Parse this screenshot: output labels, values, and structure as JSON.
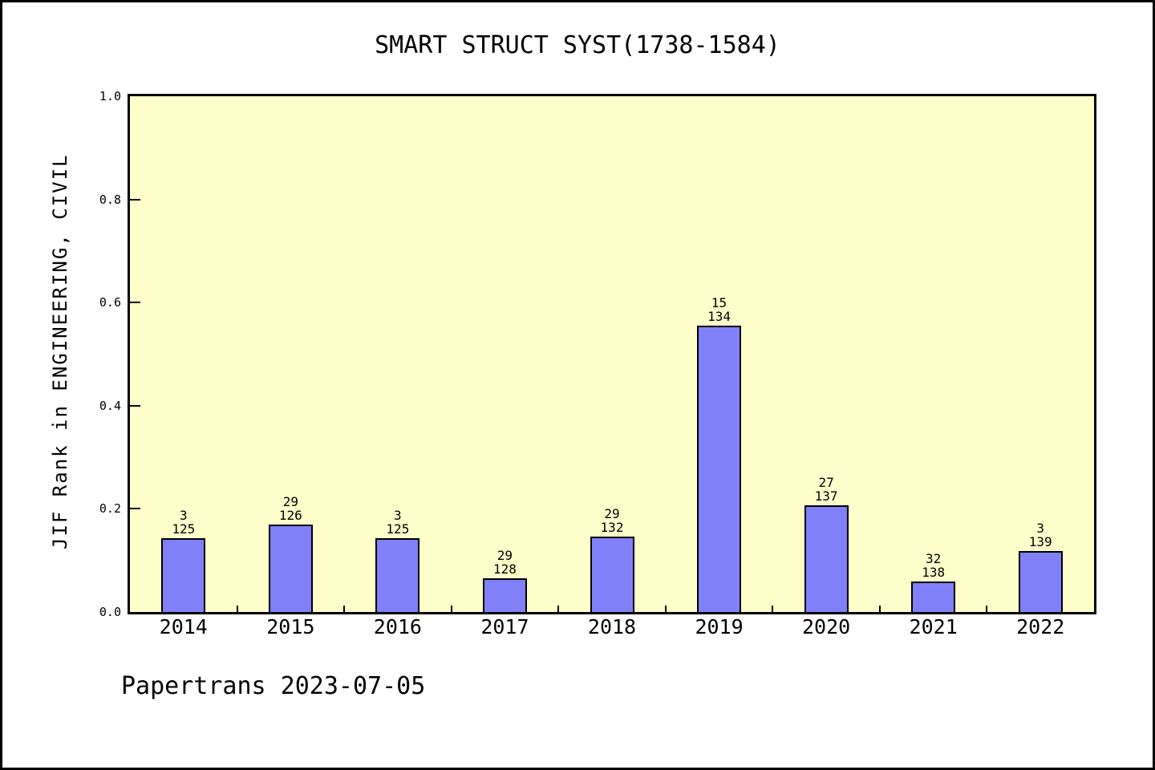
{
  "page": {
    "background": "#ffffff",
    "border_color": "#000000",
    "footer": "Papertrans 2023-07-05"
  },
  "chart_data": {
    "type": "bar",
    "title": "SMART STRUCT SYST(1738-1584)",
    "ylabel": "JIF Rank in ENGINEERING, CIVIL",
    "xlabel": "",
    "categories": [
      "2014",
      "2015",
      "2016",
      "2017",
      "2018",
      "2019",
      "2020",
      "2021",
      "2022"
    ],
    "values": [
      0.143,
      0.17,
      0.143,
      0.065,
      0.146,
      0.555,
      0.207,
      0.059,
      0.118
    ],
    "bar_labels": [
      {
        "line1": "3",
        "line2": "125"
      },
      {
        "line1": "29",
        "line2": "126"
      },
      {
        "line1": "3",
        "line2": "125"
      },
      {
        "line1": "29",
        "line2": "128"
      },
      {
        "line1": "29",
        "line2": "132"
      },
      {
        "line1": "15",
        "line2": "134"
      },
      {
        "line1": "27",
        "line2": "137"
      },
      {
        "line1": "32",
        "line2": "138"
      },
      {
        "line1": "3",
        "line2": "139"
      }
    ],
    "ylim": [
      0,
      1
    ],
    "yticks": [
      {
        "label": "0.0",
        "value": 0.0
      },
      {
        "label": "0.2",
        "value": 0.2
      },
      {
        "label": "0.4",
        "value": 0.4
      },
      {
        "label": "0.6",
        "value": 0.6
      },
      {
        "label": "0.8",
        "value": 0.8
      },
      {
        "label": "1.0",
        "value": 1.0
      }
    ],
    "grid": false,
    "legend_position": "none",
    "bar_color": "#8080f8",
    "bar_edge_color": "#000000",
    "plot_background": "#ffffcc"
  }
}
